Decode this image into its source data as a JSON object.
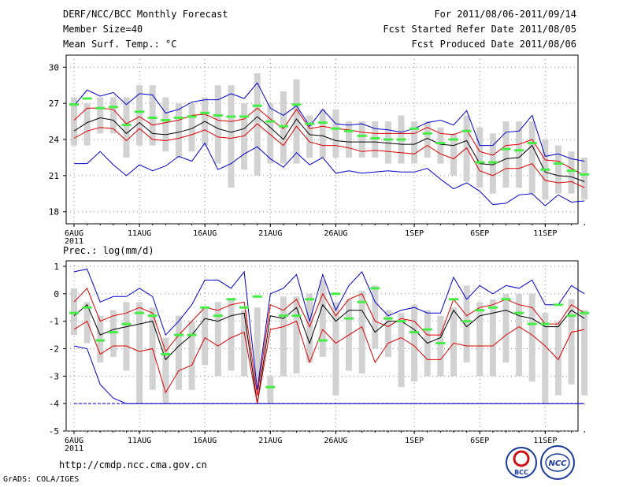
{
  "header": {
    "title": "DERF/NCC/BCC Monthly Forecast",
    "member_size": "Member Size=40",
    "forecast_period": "For 2011/08/06-2011/09/14",
    "fcst_started": "Fcst Started Refer Date 2011/08/05",
    "fcst_produced": "Fcst Produced Date 2011/08/06"
  },
  "footer": {
    "url": "http://cmdp.ncc.cma.gov.cn",
    "credit": "GrADS: COLA/IGES",
    "logo_bcc_label": "BCC",
    "logo_ncc_label": "NCC"
  },
  "colors": {
    "ensemble_mean": "#000000",
    "spread_band": "#dd0000",
    "extreme_band": "#0000cc",
    "box": "#d2d2d2",
    "climatology": "#44ee44"
  },
  "chart_data": [
    {
      "type": "line",
      "title": "Mean Surf. Temp.: °C",
      "ylim": [
        17,
        31
      ],
      "yticks": [
        18,
        21,
        24,
        27,
        30
      ],
      "xticks": [
        {
          "day": 1,
          "label": "6AUG",
          "sub": "2011"
        },
        {
          "day": 6,
          "label": "11AUG"
        },
        {
          "day": 11,
          "label": "16AUG"
        },
        {
          "day": 16,
          "label": "21AUG"
        },
        {
          "day": 21,
          "label": "26AUG"
        },
        {
          "day": 27,
          "label": "1SEP"
        },
        {
          "day": 32,
          "label": "6SEP"
        },
        {
          "day": 37,
          "label": "11SEP"
        }
      ],
      "x": [
        1,
        2,
        3,
        4,
        5,
        6,
        7,
        8,
        9,
        10,
        11,
        12,
        13,
        14,
        15,
        16,
        17,
        18,
        19,
        20,
        21,
        22,
        23,
        24,
        25,
        26,
        27,
        28,
        29,
        30,
        31,
        32,
        33,
        34,
        35,
        36,
        37,
        38,
        39,
        40
      ],
      "box_low": [
        23.5,
        23.5,
        24.5,
        24.5,
        22.5,
        23.5,
        23.5,
        23.0,
        22.5,
        23.0,
        23.5,
        22.0,
        20.0,
        21.5,
        21.0,
        22.0,
        22.0,
        22.0,
        22.5,
        22.5,
        22.5,
        22.5,
        22.5,
        22.5,
        22.0,
        22.0,
        22.0,
        22.5,
        22.0,
        21.0,
        20.5,
        20.0,
        19.5,
        20.0,
        20.0,
        19.5,
        19.0,
        19.5,
        19.5,
        19.0
      ],
      "box_high": [
        27.5,
        27.0,
        27.5,
        27.5,
        27.5,
        28.5,
        28.5,
        27.5,
        27.0,
        27.0,
        27.5,
        28.5,
        28.5,
        27.0,
        29.5,
        27.0,
        28.0,
        29.0,
        26.0,
        26.5,
        26.5,
        25.5,
        25.5,
        25.5,
        25.5,
        26.0,
        25.5,
        25.5,
        25.0,
        24.5,
        26.0,
        25.0,
        24.5,
        25.5,
        25.5,
        25.5,
        24.0,
        23.5,
        23.0,
        22.5
      ],
      "series": [
        {
          "name": "Maximum",
          "role": "extreme_band",
          "values": [
            26.8,
            28.1,
            27.6,
            27.9,
            26.9,
            27.8,
            27.7,
            26.2,
            26.5,
            27.1,
            27.3,
            27.3,
            27.8,
            27.4,
            28.7,
            26.6,
            26.0,
            26.8,
            25.1,
            26.5,
            25.3,
            25.2,
            25.3,
            24.9,
            24.8,
            24.6,
            24.9,
            25.4,
            25.6,
            25.2,
            26.4,
            23.5,
            23.5,
            24.6,
            24.7,
            26.0,
            22.6,
            22.8,
            22.4,
            22.2
          ]
        },
        {
          "name": "Ensemble +1 spread",
          "role": "spread_band",
          "values": [
            25.6,
            26.6,
            26.6,
            26.5,
            25.3,
            25.9,
            25.2,
            25.4,
            25.6,
            26.0,
            26.1,
            25.6,
            25.5,
            25.7,
            26.6,
            25.7,
            24.9,
            26.5,
            24.9,
            25.1,
            24.9,
            24.8,
            24.6,
            24.5,
            24.5,
            24.5,
            24.5,
            25.0,
            24.5,
            24.4,
            24.8,
            23.0,
            22.7,
            23.5,
            23.6,
            24.0,
            22.3,
            22.2,
            21.6,
            21.0
          ]
        },
        {
          "name": "Ensemble mean",
          "role": "ensemble_mean",
          "values": [
            24.7,
            25.4,
            25.8,
            25.6,
            24.5,
            25.4,
            24.5,
            24.4,
            24.6,
            24.9,
            25.5,
            24.9,
            24.6,
            24.9,
            25.9,
            25.0,
            24.0,
            25.7,
            24.4,
            24.3,
            23.9,
            23.8,
            23.8,
            23.8,
            23.7,
            23.6,
            23.6,
            24.1,
            23.6,
            23.5,
            23.9,
            22.0,
            21.9,
            22.4,
            22.5,
            23.5,
            21.3,
            21.0,
            20.9,
            20.5
          ]
        },
        {
          "name": "Ensemble -1 spread",
          "role": "spread_band",
          "values": [
            24.1,
            24.7,
            25.0,
            24.9,
            23.9,
            24.9,
            24.0,
            23.9,
            24.1,
            24.4,
            24.8,
            24.2,
            24.1,
            24.3,
            25.3,
            24.4,
            23.5,
            25.1,
            23.8,
            23.5,
            23.5,
            23.3,
            23.0,
            23.1,
            23.0,
            22.9,
            22.8,
            23.5,
            22.8,
            22.4,
            23.3,
            21.4,
            21.0,
            21.6,
            21.6,
            22.0,
            20.6,
            20.4,
            20.5,
            20.0
          ]
        },
        {
          "name": "Minimum",
          "role": "extreme_band",
          "values": [
            22.0,
            22.0,
            23.0,
            21.9,
            21.0,
            21.9,
            21.4,
            21.8,
            22.6,
            22.2,
            23.7,
            21.5,
            22.0,
            22.8,
            23.4,
            22.4,
            21.7,
            22.9,
            21.9,
            22.5,
            21.2,
            21.4,
            21.2,
            21.3,
            21.4,
            21.3,
            21.3,
            21.6,
            20.7,
            19.9,
            20.4,
            19.7,
            18.6,
            18.7,
            19.4,
            19.5,
            18.5,
            19.4,
            18.8,
            18.9
          ]
        }
      ],
      "climatology": [
        26.9,
        27.4,
        26.6,
        26.7,
        25.2,
        26.3,
        25.8,
        25.6,
        25.8,
        25.9,
        26.2,
        26.0,
        25.9,
        25.9,
        26.8,
        25.5,
        25.1,
        26.9,
        25.3,
        25.4,
        24.9,
        24.7,
        24.3,
        24.1,
        24.0,
        24.0,
        24.9,
        24.5,
        23.7,
        24.0,
        24.7,
        22.1,
        22.1,
        23.2,
        23.1,
        23.7,
        21.5,
        22.0,
        21.4,
        21.1
      ]
    },
    {
      "type": "line",
      "title": "Prec.: log(mm/d)",
      "ylim": [
        -5,
        1.2
      ],
      "yticks": [
        -5,
        -4,
        -3,
        -2,
        -1,
        0,
        1
      ],
      "xticks": [
        {
          "day": 1,
          "label": "6AUG",
          "sub": "2011"
        },
        {
          "day": 6,
          "label": "11AUG"
        },
        {
          "day": 11,
          "label": "16AUG"
        },
        {
          "day": 16,
          "label": "21AUG"
        },
        {
          "day": 21,
          "label": "26AUG"
        },
        {
          "day": 27,
          "label": "1SEP"
        },
        {
          "day": 32,
          "label": "6SEP"
        },
        {
          "day": 37,
          "label": "11SEP"
        }
      ],
      "x": [
        1,
        2,
        3,
        4,
        5,
        6,
        7,
        8,
        9,
        10,
        11,
        12,
        13,
        14,
        15,
        16,
        17,
        18,
        19,
        20,
        21,
        22,
        23,
        24,
        25,
        26,
        27,
        28,
        29,
        30,
        31,
        32,
        33,
        34,
        35,
        36,
        37,
        38,
        39,
        40
      ],
      "box_low": [
        -1.5,
        -1.8,
        -2.5,
        -2.3,
        -2.8,
        -4.0,
        -3.5,
        -4.0,
        -3.5,
        -3.5,
        -2.6,
        -3.0,
        -2.8,
        -3.0,
        -3.2,
        -4.0,
        -3.0,
        -2.9,
        -2.5,
        -2.3,
        -3.7,
        -2.8,
        -2.9,
        -2.0,
        -2.3,
        -3.4,
        -3.2,
        -3.0,
        -3.0,
        -3.0,
        -2.5,
        -3.0,
        -3.0,
        -2.5,
        -3.0,
        -3.2,
        -4.0,
        -3.7,
        -3.3,
        -3.7
      ],
      "box_high": [
        0.2,
        -0.3,
        -0.8,
        -0.6,
        -0.3,
        -0.3,
        -0.5,
        -1.6,
        -0.8,
        -1.0,
        -0.5,
        -0.3,
        -0.2,
        -0.6,
        -0.5,
        -3.0,
        -0.1,
        -0.1,
        0.0,
        0.5,
        -0.3,
        -0.2,
        0.1,
        0.3,
        -0.6,
        -0.7,
        -0.4,
        -0.6,
        -0.8,
        -0.5,
        0.3,
        -0.3,
        -0.2,
        0.0,
        0.0,
        0.0,
        -0.7,
        -1.0,
        -0.2,
        -0.6
      ],
      "series": [
        {
          "name": "Maximum",
          "role": "extreme_band",
          "values": [
            0.8,
            0.9,
            -0.3,
            -0.1,
            -0.1,
            0.2,
            -0.1,
            -1.5,
            -1.0,
            -0.4,
            0.5,
            0.5,
            0.2,
            0.8,
            -3.5,
            0.0,
            0.2,
            0.7,
            -1.0,
            0.7,
            -0.6,
            0.3,
            0.8,
            -0.3,
            -0.8,
            -0.6,
            -0.5,
            -0.7,
            -0.7,
            0.6,
            -0.2,
            0.3,
            0.0,
            0.3,
            0.2,
            0.5,
            -0.4,
            -0.4,
            0.3,
            0.0
          ]
        },
        {
          "name": "Ensemble +1 spread",
          "role": "spread_band",
          "values": [
            -0.3,
            0.2,
            -1.0,
            -0.8,
            -0.7,
            -0.5,
            -0.7,
            -2.1,
            -1.5,
            -1.0,
            -0.5,
            -0.6,
            -0.4,
            -0.3,
            -3.7,
            -0.4,
            -0.6,
            -0.2,
            -1.2,
            0.0,
            -0.8,
            -0.2,
            0.0,
            -1.0,
            -1.2,
            -0.9,
            -1.0,
            -1.5,
            -1.5,
            -0.2,
            -0.8,
            -0.5,
            -0.4,
            -0.2,
            -0.4,
            -0.5,
            -1.1,
            -1.1,
            -0.4,
            -0.7
          ]
        },
        {
          "name": "Ensemble mean",
          "role": "ensemble_mean",
          "values": [
            -0.8,
            -0.4,
            -1.5,
            -1.3,
            -1.2,
            -1.1,
            -1.0,
            -2.4,
            -1.9,
            -1.5,
            -0.9,
            -1.0,
            -0.8,
            -0.7,
            -4.0,
            -0.8,
            -0.9,
            -0.5,
            -1.8,
            -0.4,
            -1.0,
            -0.6,
            -0.6,
            -1.4,
            -1.0,
            -1.0,
            -1.3,
            -1.8,
            -1.6,
            -0.6,
            -1.2,
            -0.8,
            -0.7,
            -0.6,
            -0.8,
            -0.9,
            -1.2,
            -1.2,
            -0.6,
            -0.9
          ]
        },
        {
          "name": "Ensemble -1 spread",
          "role": "spread_band",
          "values": [
            -1.3,
            -1.0,
            -2.2,
            -1.9,
            -1.9,
            -2.1,
            -2.0,
            -3.6,
            -2.8,
            -2.6,
            -1.6,
            -1.9,
            -1.6,
            -1.4,
            -4.0,
            -1.3,
            -1.2,
            -1.0,
            -2.5,
            -1.3,
            -1.8,
            -1.5,
            -1.2,
            -2.5,
            -1.8,
            -1.6,
            -1.9,
            -2.4,
            -2.4,
            -1.8,
            -1.9,
            -1.9,
            -1.9,
            -1.5,
            -1.2,
            -1.5,
            -1.9,
            -2.4,
            -1.4,
            -1.3
          ]
        },
        {
          "name": "Minimum",
          "role": "extreme_band",
          "values": [
            -1.9,
            -2.0,
            -3.3,
            -3.8,
            -4.0,
            -4.0,
            -4.0,
            -4.0,
            -4.0,
            -4.0,
            -4.0,
            -4.0,
            -4.0,
            -4.0,
            -4.0,
            -4.0,
            -4.0,
            -4.0,
            -4.0,
            -4.0,
            -4.0,
            -4.0,
            -4.0,
            -4.0,
            -4.0,
            -4.0,
            -4.0,
            -4.0,
            -4.0,
            -4.0,
            -4.0,
            -4.0,
            -4.0,
            -4.0,
            -4.0,
            -4.0,
            -4.0,
            -4.0,
            -4.0,
            -4.0
          ]
        }
      ],
      "floor_value": -4.0,
      "climatology": [
        -0.7,
        -0.5,
        -1.7,
        -1.4,
        -1.1,
        -0.7,
        -0.8,
        -2.2,
        -1.5,
        -1.5,
        -0.5,
        -0.8,
        -0.2,
        -0.5,
        -0.1,
        -3.4,
        -0.8,
        -0.8,
        -0.2,
        -1.7,
        0.0,
        -0.9,
        -0.3,
        0.2,
        -0.9,
        -1.0,
        -1.4,
        -1.3,
        -1.8,
        -0.2,
        -1.0,
        -0.6,
        -0.5,
        -0.2,
        -0.7,
        -1.1,
        -1.1,
        -0.4,
        -0.8,
        -0.7
      ]
    }
  ]
}
